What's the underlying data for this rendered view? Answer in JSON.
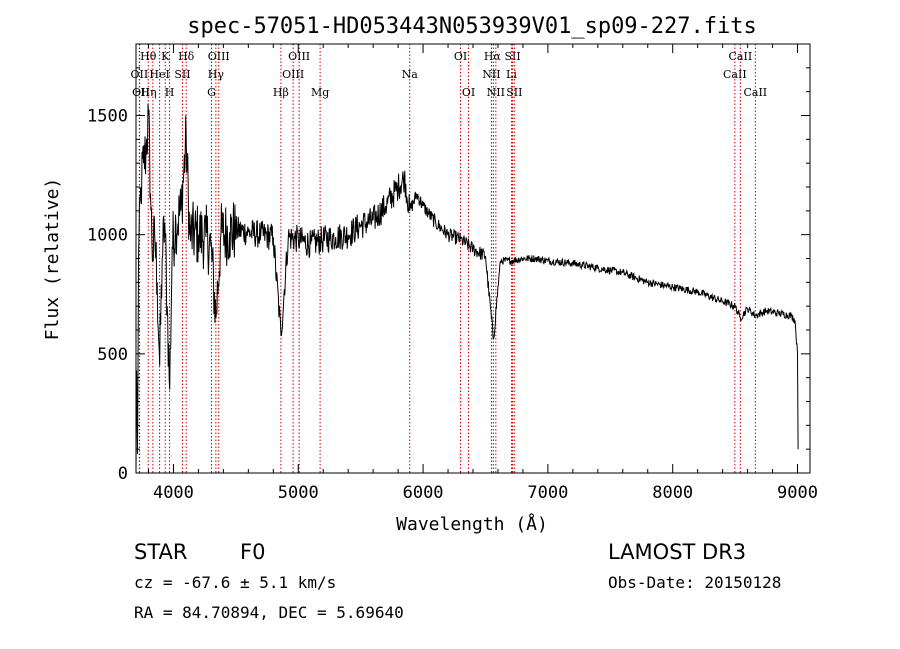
{
  "chart_data": {
    "type": "line",
    "title": "spec-57051-HD053443N053939V01_sp09-227.fits",
    "xlabel": "Wavelength (Å)",
    "ylabel": "Flux (relative)",
    "xlim": [
      3700,
      9100
    ],
    "ylim": [
      0,
      1800
    ],
    "xticks": [
      4000,
      5000,
      6000,
      7000,
      8000,
      9000
    ],
    "yticks": [
      0,
      500,
      1000,
      1500
    ],
    "series": [
      {
        "name": "spectrum",
        "anchors": [
          [
            3700,
            0
          ],
          [
            3705,
            430
          ],
          [
            3712,
            80
          ],
          [
            3720,
            900
          ],
          [
            3740,
            1200
          ],
          [
            3760,
            1300
          ],
          [
            3780,
            1350
          ],
          [
            3800,
            1500
          ],
          [
            3820,
            1100
          ],
          [
            3835,
            900
          ],
          [
            3850,
            1000
          ],
          [
            3870,
            800
          ],
          [
            3890,
            450
          ],
          [
            3910,
            900
          ],
          [
            3930,
            1050
          ],
          [
            3950,
            700
          ],
          [
            3970,
            350
          ],
          [
            3990,
            950
          ],
          [
            4020,
            1050
          ],
          [
            4060,
            1100
          ],
          [
            4102,
            1400
          ],
          [
            4130,
            1000
          ],
          [
            4200,
            1000
          ],
          [
            4260,
            990
          ],
          [
            4300,
            950
          ],
          [
            4340,
            650
          ],
          [
            4380,
            1000
          ],
          [
            4450,
            1010
          ],
          [
            4500,
            1020
          ],
          [
            4600,
            1010
          ],
          [
            4700,
            1000
          ],
          [
            4800,
            990
          ],
          [
            4861,
            580
          ],
          [
            4920,
            990
          ],
          [
            5000,
            980
          ],
          [
            5100,
            960
          ],
          [
            5200,
            980
          ],
          [
            5300,
            990
          ],
          [
            5400,
            1000
          ],
          [
            5500,
            1040
          ],
          [
            5600,
            1060
          ],
          [
            5700,
            1120
          ],
          [
            5800,
            1200
          ],
          [
            5850,
            1240
          ],
          [
            5893,
            1100
          ],
          [
            5950,
            1170
          ],
          [
            6000,
            1120
          ],
          [
            6100,
            1050
          ],
          [
            6200,
            1000
          ],
          [
            6300,
            980
          ],
          [
            6400,
            940
          ],
          [
            6500,
            910
          ],
          [
            6563,
            560
          ],
          [
            6620,
            890
          ],
          [
            6700,
            890
          ],
          [
            6800,
            900
          ],
          [
            6900,
            900
          ],
          [
            7000,
            890
          ],
          [
            7200,
            880
          ],
          [
            7400,
            860
          ],
          [
            7600,
            840
          ],
          [
            7800,
            800
          ],
          [
            8000,
            780
          ],
          [
            8200,
            760
          ],
          [
            8400,
            720
          ],
          [
            8500,
            700
          ],
          [
            8542,
            650
          ],
          [
            8600,
            690
          ],
          [
            8662,
            660
          ],
          [
            8750,
            680
          ],
          [
            8850,
            670
          ],
          [
            8950,
            660
          ],
          [
            8980,
            640
          ],
          [
            9000,
            500
          ],
          [
            9005,
            100
          ]
        ]
      }
    ],
    "lines": [
      {
        "name": "Hθ",
        "wave": 3798,
        "row": 0,
        "lx": 3798
      },
      {
        "name": "K",
        "wave": 3934,
        "row": 0,
        "lx": 3934
      },
      {
        "name": "Hδ",
        "wave": 4102,
        "row": 0,
        "lx": 4102
      },
      {
        "name": "OIII",
        "wave": 4363,
        "row": 0,
        "lx": 4363
      },
      {
        "name": "OIII",
        "wave": 5007,
        "row": 0,
        "lx": 5007
      },
      {
        "name": "OI",
        "wave": 6300,
        "row": 0,
        "lx": 6300
      },
      {
        "name": "Hα",
        "wave": 6563,
        "row": 0,
        "lx": 6555
      },
      {
        "name": "SII",
        "wave": 6717,
        "row": 0,
        "lx": 6717
      },
      {
        "name": "CaII",
        "wave": 8542,
        "row": 0,
        "lx": 8542
      },
      {
        "name": "OII",
        "wave": 3727,
        "row": 1,
        "lx": 3727
      },
      {
        "name": "HeI",
        "wave": 3889,
        "row": 1,
        "lx": 3889
      },
      {
        "name": "SII",
        "wave": 4072,
        "row": 1,
        "lx": 4072
      },
      {
        "name": "Hγ",
        "wave": 4340,
        "row": 1,
        "lx": 4340
      },
      {
        "name": "OIII",
        "wave": 4959,
        "row": 1,
        "lx": 4959
      },
      {
        "name": "Na",
        "wave": 5893,
        "row": 1,
        "lx": 5893
      },
      {
        "name": "NII",
        "wave": 6548,
        "row": 1,
        "lx": 6548
      },
      {
        "name": "Li",
        "wave": 6708,
        "row": 1,
        "lx": 6708
      },
      {
        "name": "CaII",
        "wave": 8498,
        "row": 1,
        "lx": 8498
      },
      {
        "name": "OII",
        "wave": 3729,
        "row": 2,
        "lx": 3740
      },
      {
        "name": "Hη",
        "wave": 3835,
        "row": 2,
        "lx": 3800
      },
      {
        "name": "H",
        "wave": 3969,
        "row": 2,
        "lx": 3969
      },
      {
        "name": "G",
        "wave": 4305,
        "row": 2,
        "lx": 4305
      },
      {
        "name": "Hβ",
        "wave": 4861,
        "row": 2,
        "lx": 4861
      },
      {
        "name": "Mg",
        "wave": 5175,
        "row": 2,
        "lx": 5175
      },
      {
        "name": "OI",
        "wave": 6364,
        "row": 2,
        "lx": 6364
      },
      {
        "name": "NII",
        "wave": 6583,
        "row": 2,
        "lx": 6583
      },
      {
        "name": "SII",
        "wave": 6731,
        "row": 2,
        "lx": 6731
      },
      {
        "name": "CaII",
        "wave": 8662,
        "row": 2,
        "lx": 8662
      }
    ]
  },
  "info": {
    "class": "STAR",
    "subclass": "F0",
    "cz": "cz = -67.6 ± 5.1 km/s",
    "radec": "RA =  84.70894, DEC =   5.69640",
    "survey": "LAMOST DR3",
    "obsdate": "Obs-Date: 20150128"
  },
  "colors": {
    "line_marker": "#cc0000",
    "spectrum": "#000000",
    "axis": "#000000"
  }
}
